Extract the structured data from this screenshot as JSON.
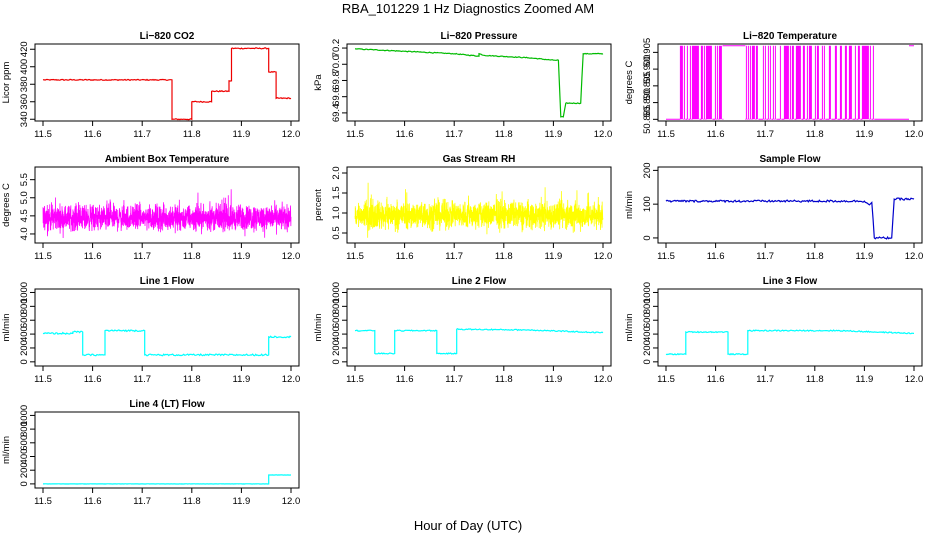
{
  "figure": {
    "title": "RBA_101229  1 Hz Diagnostics Zoomed AM",
    "xlabel": "Hour of Day (UTC)"
  },
  "chart_data": [
    {
      "type": "line",
      "title": "Li−820 CO2",
      "ylabel": "Licor ppm",
      "color": "#ee0000",
      "xlim": [
        11.5,
        12.0
      ],
      "xticks": [
        "11.5",
        "11.6",
        "11.7",
        "11.8",
        "11.9",
        "12.0"
      ],
      "ylim": [
        338,
        426
      ],
      "yticks": [
        340,
        360,
        380,
        400,
        420
      ],
      "noise": 0.6,
      "points": [
        [
          11.5,
          385
        ],
        [
          11.76,
          385
        ],
        [
          11.76,
          340
        ],
        [
          11.8,
          340
        ],
        [
          11.8,
          360
        ],
        [
          11.84,
          360
        ],
        [
          11.84,
          372
        ],
        [
          11.875,
          372
        ],
        [
          11.875,
          384
        ],
        [
          11.88,
          384
        ],
        [
          11.88,
          421
        ],
        [
          11.955,
          421
        ],
        [
          11.955,
          394
        ],
        [
          11.97,
          394
        ],
        [
          11.97,
          364
        ],
        [
          12.0,
          364
        ]
      ]
    },
    {
      "type": "line",
      "title": "Li−820 Pressure",
      "ylabel": "kPa",
      "color": "#00bb00",
      "xlim": [
        11.5,
        12.0
      ],
      "xticks": [
        "11.5",
        "11.6",
        "11.7",
        "11.8",
        "11.9",
        "12.0"
      ],
      "ylim": [
        69.3,
        70.25
      ],
      "yticks": [
        "69.4",
        "69.6",
        "69.8",
        "70.0",
        "70.2"
      ],
      "noise": 0.005,
      "points": [
        [
          11.5,
          70.19
        ],
        [
          11.6,
          70.16
        ],
        [
          11.7,
          70.13
        ],
        [
          11.75,
          70.1
        ],
        [
          11.75,
          70.13
        ],
        [
          11.76,
          70.11
        ],
        [
          11.85,
          70.08
        ],
        [
          11.9,
          70.05
        ],
        [
          11.91,
          70.05
        ],
        [
          11.915,
          69.35
        ],
        [
          11.92,
          69.35
        ],
        [
          11.925,
          69.52
        ],
        [
          11.955,
          69.52
        ],
        [
          11.96,
          70.13
        ],
        [
          12.0,
          70.13
        ]
      ]
    },
    {
      "type": "bars",
      "title": "Li−820 Temperature",
      "ylabel": "degrees C",
      "color": "#ff00ff",
      "xlim": [
        11.5,
        12.0
      ],
      "xticks": [
        "11.5",
        "11.6",
        "11.7",
        "11.8",
        "11.9",
        "12.0"
      ],
      "ylim": [
        50.8845,
        50.9075
      ],
      "yticks": [
        "50.885",
        "50.890",
        "50.895",
        "50.900",
        "50.905"
      ],
      "low": 50.885,
      "high": 50.907,
      "spans": [
        [
          11.5,
          11.527,
          "low"
        ],
        [
          11.527,
          11.614,
          "toggle"
        ],
        [
          11.614,
          11.66,
          "high"
        ],
        [
          11.66,
          11.92,
          "toggle"
        ],
        [
          11.92,
          11.99,
          "low"
        ],
        [
          11.99,
          12.0,
          "high"
        ]
      ]
    },
    {
      "type": "noisy",
      "title": "Ambient Box Temperature",
      "ylabel": "degrees C",
      "color": "#ff00ff",
      "xlim": [
        11.5,
        12.0
      ],
      "xticks": [
        "11.5",
        "11.6",
        "11.7",
        "11.8",
        "11.9",
        "12.0"
      ],
      "ylim": [
        3.75,
        5.85
      ],
      "yticks": [
        "4.0",
        "4.5",
        "5.0",
        "5.5"
      ],
      "center": 4.45,
      "amplitude": 0.32,
      "count": 1800
    },
    {
      "type": "noisy",
      "title": "Gas Stream RH",
      "ylabel": "percent",
      "color": "#ffff00",
      "xlim": [
        11.5,
        12.0
      ],
      "xticks": [
        "11.5",
        "11.6",
        "11.7",
        "11.8",
        "11.9",
        "12.0"
      ],
      "ylim": [
        0.25,
        2.15
      ],
      "yticks": [
        "0.5",
        "1.0",
        "1.5",
        "2.0"
      ],
      "center": 0.95,
      "amplitude": 0.32,
      "count": 1800
    },
    {
      "type": "line",
      "title": "Sample Flow",
      "ylabel": "ml/min",
      "color": "#0000cc",
      "xlim": [
        11.5,
        12.0
      ],
      "xticks": [
        "11.5",
        "11.6",
        "11.7",
        "11.8",
        "11.9",
        "12.0"
      ],
      "ylim": [
        -15,
        210
      ],
      "yticks": [
        0,
        100,
        200
      ],
      "noise": 3,
      "points": [
        [
          11.5,
          109
        ],
        [
          11.9,
          109
        ],
        [
          11.91,
          98
        ],
        [
          11.915,
          105
        ],
        [
          11.92,
          0
        ],
        [
          11.955,
          0
        ],
        [
          11.96,
          115
        ],
        [
          12.0,
          115
        ]
      ]
    },
    {
      "type": "line",
      "title": "Line 1 Flow",
      "ylabel": "ml/min",
      "color": "#00ffff",
      "xlim": [
        11.5,
        12.0
      ],
      "xticks": [
        "11.5",
        "11.6",
        "11.7",
        "11.8",
        "11.9",
        "12.0"
      ],
      "ylim": [
        -60,
        1050
      ],
      "yticks": [
        0,
        200,
        400,
        600,
        800,
        1000
      ],
      "noise": 12,
      "points": [
        [
          11.5,
          410
        ],
        [
          11.56,
          410
        ],
        [
          11.56,
          430
        ],
        [
          11.58,
          430
        ],
        [
          11.58,
          100
        ],
        [
          11.625,
          100
        ],
        [
          11.625,
          450
        ],
        [
          11.705,
          450
        ],
        [
          11.705,
          100
        ],
        [
          11.955,
          100
        ],
        [
          11.955,
          360
        ],
        [
          12.0,
          360
        ]
      ]
    },
    {
      "type": "line",
      "title": "Line 2 Flow",
      "ylabel": "ml/min",
      "color": "#00ffff",
      "xlim": [
        11.5,
        12.0
      ],
      "xticks": [
        "11.5",
        "11.6",
        "11.7",
        "11.8",
        "11.9",
        "12.0"
      ],
      "ylim": [
        -60,
        1050
      ],
      "yticks": [
        0,
        200,
        400,
        600,
        800,
        1000
      ],
      "noise": 8,
      "points": [
        [
          11.5,
          450
        ],
        [
          11.54,
          450
        ],
        [
          11.54,
          120
        ],
        [
          11.58,
          120
        ],
        [
          11.58,
          450
        ],
        [
          11.665,
          450
        ],
        [
          11.665,
          120
        ],
        [
          11.705,
          120
        ],
        [
          11.705,
          470
        ],
        [
          11.85,
          460
        ],
        [
          11.96,
          430
        ],
        [
          12.0,
          420
        ]
      ]
    },
    {
      "type": "line",
      "title": "Line 3 Flow",
      "ylabel": "ml/min",
      "color": "#00ffff",
      "xlim": [
        11.5,
        12.0
      ],
      "xticks": [
        "11.5",
        "11.6",
        "11.7",
        "11.8",
        "11.9",
        "12.0"
      ],
      "ylim": [
        -60,
        1050
      ],
      "yticks": [
        0,
        200,
        400,
        600,
        800,
        1000
      ],
      "noise": 8,
      "points": [
        [
          11.5,
          110
        ],
        [
          11.54,
          110
        ],
        [
          11.54,
          430
        ],
        [
          11.625,
          430
        ],
        [
          11.625,
          110
        ],
        [
          11.665,
          110
        ],
        [
          11.665,
          450
        ],
        [
          11.85,
          450
        ],
        [
          11.96,
          420
        ],
        [
          12.0,
          410
        ]
      ]
    },
    {
      "type": "line",
      "title": "Line 4 (LT) Flow",
      "ylabel": "ml/min",
      "color": "#00ffff",
      "xlim": [
        11.5,
        12.0
      ],
      "xticks": [
        "11.5",
        "11.6",
        "11.7",
        "11.8",
        "11.9",
        "12.0"
      ],
      "ylim": [
        -60,
        1050
      ],
      "yticks": [
        0,
        200,
        400,
        600,
        800,
        1000
      ],
      "noise": 2,
      "points": [
        [
          11.5,
          0
        ],
        [
          11.955,
          0
        ],
        [
          11.955,
          130
        ],
        [
          12.0,
          130
        ]
      ]
    }
  ]
}
